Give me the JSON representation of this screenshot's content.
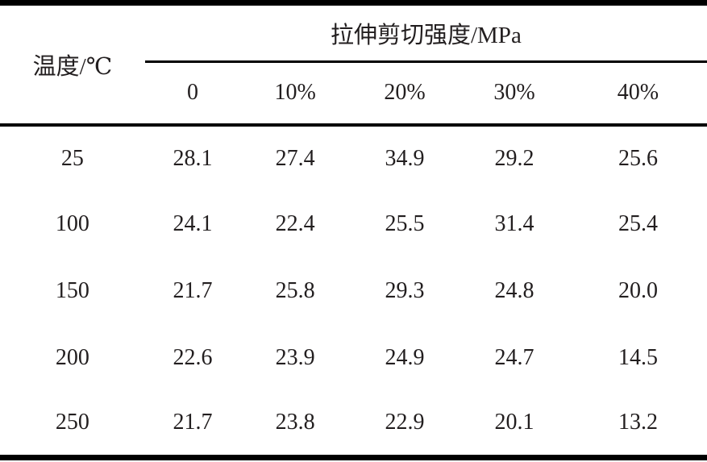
{
  "table": {
    "row_header_title": "温度/℃",
    "group_header": "拉伸剪切强度/MPa",
    "col_headers": [
      "0",
      "10%",
      "20%",
      "30%",
      "40%"
    ],
    "rows": [
      {
        "temp": "25",
        "values": [
          "28.1",
          "27.4",
          "34.9",
          "29.2",
          "25.6"
        ]
      },
      {
        "temp": "100",
        "values": [
          "24.1",
          "22.4",
          "25.5",
          "31.4",
          "25.4"
        ]
      },
      {
        "temp": "150",
        "values": [
          "21.7",
          "25.8",
          "29.3",
          "24.8",
          "20.0"
        ]
      },
      {
        "temp": "200",
        "values": [
          "22.6",
          "23.9",
          "24.9",
          "24.7",
          "14.5"
        ]
      },
      {
        "temp": "250",
        "values": [
          "21.7",
          "23.8",
          "22.9",
          "20.1",
          "13.2"
        ]
      }
    ]
  },
  "chart_data": {
    "type": "table",
    "title": "拉伸剪切强度/MPa",
    "row_label": "温度/℃",
    "columns": [
      "0",
      "10%",
      "20%",
      "30%",
      "40%"
    ],
    "row_categories": [
      25,
      100,
      150,
      200,
      250
    ],
    "values": [
      [
        28.1,
        27.4,
        34.9,
        29.2,
        25.6
      ],
      [
        24.1,
        22.4,
        25.5,
        31.4,
        25.4
      ],
      [
        21.7,
        25.8,
        29.3,
        24.8,
        20.0
      ],
      [
        22.6,
        23.9,
        24.9,
        24.7,
        14.5
      ],
      [
        21.7,
        23.8,
        22.9,
        20.1,
        13.2
      ]
    ]
  },
  "colors": {
    "text": "#221e1f",
    "border": "#000000",
    "background": "#ffffff"
  }
}
